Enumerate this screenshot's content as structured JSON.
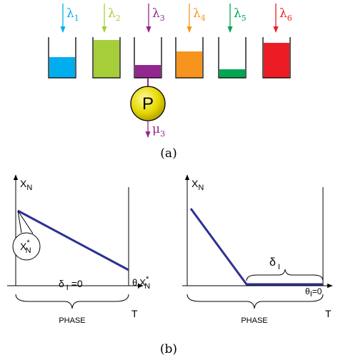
{
  "panel_a": {
    "arrivals": [
      {
        "symbol": "λ",
        "index": "1"
      },
      {
        "symbol": "λ",
        "index": "2"
      },
      {
        "symbol": "λ",
        "index": "3"
      },
      {
        "symbol": "λ",
        "index": "4"
      },
      {
        "symbol": "λ",
        "index": "5"
      },
      {
        "symbol": "λ",
        "index": "6"
      }
    ],
    "server": "P",
    "departure": {
      "symbol": "μ",
      "index": "3"
    },
    "caption": "(a)"
  },
  "panel_b": {
    "left": {
      "y_axis": {
        "symbol": "X",
        "sub": "N"
      },
      "x_axis": "T",
      "callout": {
        "symbol": "X",
        "sup": "*",
        "sub": "N"
      },
      "delta": {
        "symbol": "δ",
        "sub": "I",
        "rest": " =0"
      },
      "end_label": {
        "symbol": "θ",
        "sub": "I",
        "mid": "X",
        "sup": "*",
        "sub2": "N"
      },
      "bracket": "PHASE"
    },
    "right": {
      "y_axis": {
        "symbol": "X",
        "sub": "N"
      },
      "x_axis": "T",
      "delta": {
        "symbol": "δ",
        "sub": "I"
      },
      "end_label": {
        "symbol": "θ",
        "sub": "I",
        "rest": "=0"
      },
      "bracket": "PHASE"
    },
    "caption": "(b)"
  }
}
